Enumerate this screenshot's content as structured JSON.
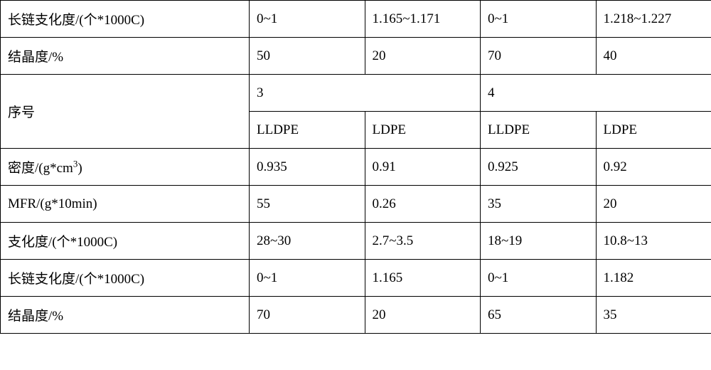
{
  "table": {
    "rows": [
      {
        "label": "长链支化度/(个*1000C)",
        "c1": "0~1",
        "c2": "1.165~1.171",
        "c3": "0~1",
        "c4": "1.218~1.227"
      },
      {
        "label": "结晶度/%",
        "c1": "50",
        "c2": "20",
        "c3": "70",
        "c4": "40"
      },
      {
        "label": "序号",
        "merged_a": "3",
        "merged_b": "4"
      },
      {
        "c1": "LLDPE",
        "c2": "LDPE",
        "c3": "LLDPE",
        "c4": "LDPE"
      },
      {
        "label_prefix": "密度/(g*cm",
        "label_sup": "3",
        "label_suffix": ")",
        "c1": "0.935",
        "c2": "0.91",
        "c3": "0.925",
        "c4": "0.92"
      },
      {
        "label": "MFR/(g*10min)",
        "c1": "55",
        "c2": "0.26",
        "c3": "35",
        "c4": "20"
      },
      {
        "label": "支化度/(个*1000C)",
        "c1": "28~30",
        "c2": "2.7~3.5",
        "c3": "18~19",
        "c4": "10.8~13"
      },
      {
        "label": "长链支化度/(个*1000C)",
        "c1": "0~1",
        "c2": "1.165",
        "c3": "0~1",
        "c4": "1.182"
      },
      {
        "label": "结晶度/%",
        "c1": "70",
        "c2": "20",
        "c3": "65",
        "c4": "35"
      }
    ],
    "colors": {
      "border": "#000000",
      "text": "#000000",
      "background": "#ffffff"
    },
    "col_widths": {
      "label": 350,
      "data": 162.5
    },
    "font_family": "SimSun",
    "font_size": 19
  }
}
